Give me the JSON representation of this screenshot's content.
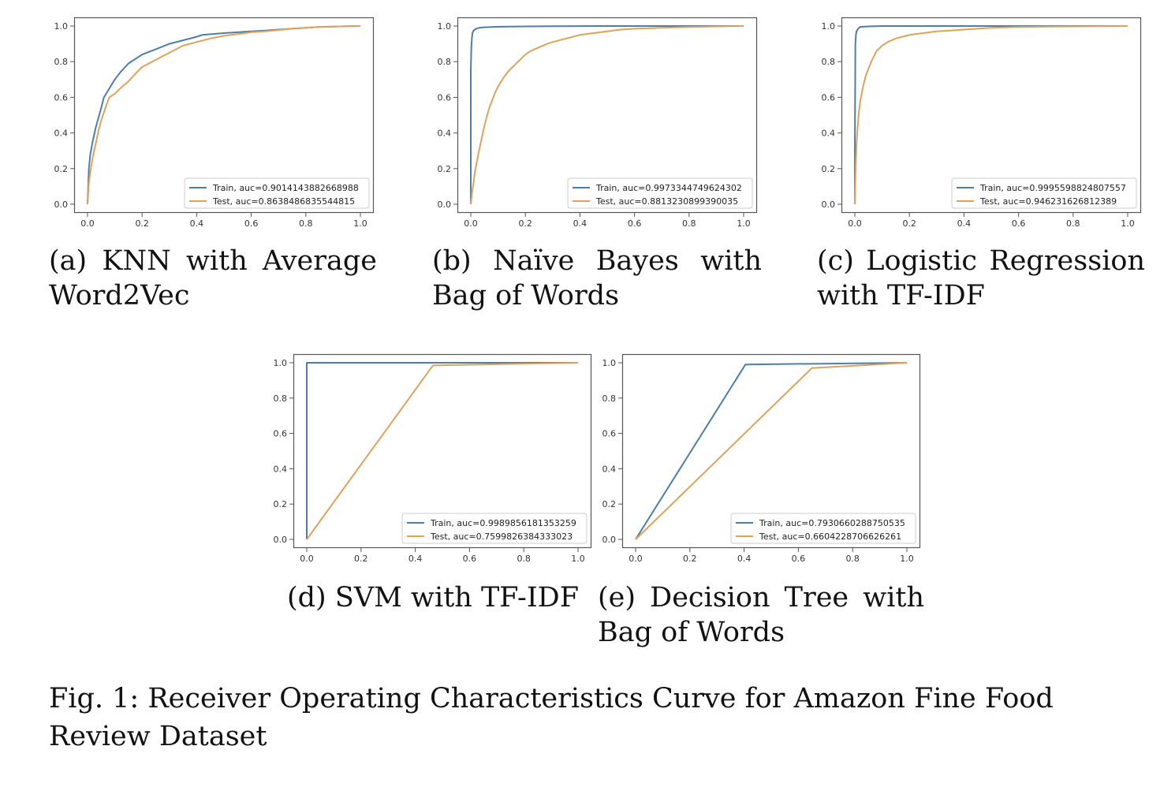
{
  "figure_caption": "Fig. 1: Receiver Operating Characteristics Curve for Amazon Fine Food Review Dataset",
  "chart_data": [
    {
      "type": "line",
      "caption": "(a) KNN with Average Word2Vec",
      "xlim": [
        0,
        1
      ],
      "ylim": [
        0,
        1
      ],
      "xticks": [
        "0.0",
        "0.2",
        "0.4",
        "0.6",
        "0.8",
        "1.0"
      ],
      "yticks": [
        "0.0",
        "0.2",
        "0.4",
        "0.6",
        "0.8",
        "1.0"
      ],
      "grid": false,
      "legend_position": "lower-right",
      "series": [
        {
          "name": "Train, auc=0.9014143882668988",
          "color": "#4c7ea8",
          "x": [
            0,
            0.005,
            0.01,
            0.02,
            0.03,
            0.05,
            0.06,
            0.08,
            0.1,
            0.12,
            0.15,
            0.2,
            0.25,
            0.3,
            0.35,
            0.4,
            0.42,
            0.5,
            0.55,
            0.6,
            0.65,
            0.7,
            0.75,
            0.8,
            0.85,
            0.9,
            0.95,
            1.0
          ],
          "y": [
            0,
            0.2,
            0.28,
            0.36,
            0.43,
            0.54,
            0.6,
            0.65,
            0.7,
            0.74,
            0.79,
            0.84,
            0.87,
            0.9,
            0.92,
            0.94,
            0.95,
            0.96,
            0.965,
            0.97,
            0.975,
            0.98,
            0.985,
            0.99,
            0.995,
            0.997,
            0.999,
            1.0
          ]
        },
        {
          "name": "Test, auc=0.8638486835544815",
          "color": "#e0a15a",
          "x": [
            0,
            0.005,
            0.01,
            0.02,
            0.03,
            0.04,
            0.05,
            0.07,
            0.08,
            0.1,
            0.12,
            0.15,
            0.18,
            0.2,
            0.25,
            0.3,
            0.35,
            0.4,
            0.45,
            0.5,
            0.55,
            0.6,
            0.65,
            0.7,
            0.75,
            0.8,
            0.85,
            0.9,
            0.95,
            1.0
          ],
          "y": [
            0,
            0.12,
            0.18,
            0.27,
            0.34,
            0.41,
            0.47,
            0.56,
            0.6,
            0.62,
            0.65,
            0.69,
            0.74,
            0.77,
            0.81,
            0.85,
            0.89,
            0.91,
            0.93,
            0.945,
            0.955,
            0.965,
            0.97,
            0.978,
            0.985,
            0.99,
            0.995,
            0.997,
            0.999,
            1.0
          ]
        }
      ]
    },
    {
      "type": "line",
      "caption": "(b) Naïve Bayes with Bag of Words",
      "xlim": [
        0,
        1
      ],
      "ylim": [
        0,
        1
      ],
      "xticks": [
        "0.0",
        "0.2",
        "0.4",
        "0.6",
        "0.8",
        "1.0"
      ],
      "yticks": [
        "0.0",
        "0.2",
        "0.4",
        "0.6",
        "0.8",
        "1.0"
      ],
      "grid": false,
      "legend_position": "lower-right",
      "series": [
        {
          "name": "Train, auc=0.9973344749624302",
          "color": "#4c7ea8",
          "x": [
            0,
            0.0,
            0.002,
            0.004,
            0.006,
            0.01,
            0.015,
            0.02,
            0.03,
            0.05,
            0.1,
            0.2,
            0.3,
            0.5,
            0.7,
            1.0
          ],
          "y": [
            0,
            0.75,
            0.88,
            0.93,
            0.96,
            0.975,
            0.98,
            0.985,
            0.99,
            0.993,
            0.996,
            0.998,
            0.999,
            1.0,
            1.0,
            1.0
          ]
        },
        {
          "name": "Test, auc=0.8813230899390035",
          "color": "#e0a15a",
          "x": [
            0,
            0.005,
            0.01,
            0.015,
            0.02,
            0.03,
            0.04,
            0.05,
            0.06,
            0.07,
            0.08,
            0.09,
            0.1,
            0.12,
            0.14,
            0.16,
            0.18,
            0.2,
            0.22,
            0.25,
            0.28,
            0.3,
            0.35,
            0.4,
            0.45,
            0.5,
            0.55,
            0.6,
            0.7,
            0.8,
            0.9,
            1.0
          ],
          "y": [
            0,
            0.07,
            0.12,
            0.18,
            0.22,
            0.3,
            0.37,
            0.44,
            0.5,
            0.55,
            0.59,
            0.63,
            0.66,
            0.71,
            0.75,
            0.78,
            0.81,
            0.84,
            0.86,
            0.88,
            0.9,
            0.91,
            0.93,
            0.95,
            0.96,
            0.97,
            0.98,
            0.985,
            0.99,
            0.995,
            0.998,
            1.0
          ]
        }
      ]
    },
    {
      "type": "line",
      "caption": "(c) Logistic Regression with TF-IDF",
      "xlim": [
        0,
        1
      ],
      "ylim": [
        0,
        1
      ],
      "xticks": [
        "0.0",
        "0.2",
        "0.4",
        "0.6",
        "0.8",
        "1.0"
      ],
      "yticks": [
        "0.0",
        "0.2",
        "0.4",
        "0.6",
        "0.8",
        "1.0"
      ],
      "grid": false,
      "legend_position": "lower-right",
      "series": [
        {
          "name": "Train, auc=0.9995598824807557",
          "color": "#4c7ea8",
          "x": [
            0,
            0.0,
            0.002,
            0.004,
            0.006,
            0.01,
            0.015,
            0.02,
            0.05,
            0.1,
            0.3,
            0.5,
            1.0
          ],
          "y": [
            0,
            0.3,
            0.9,
            0.95,
            0.97,
            0.98,
            0.99,
            0.995,
            0.998,
            1.0,
            1.0,
            1.0,
            1.0
          ]
        },
        {
          "name": "Test, auc=0.946231626812389",
          "color": "#e0a15a",
          "x": [
            0,
            0.003,
            0.006,
            0.01,
            0.015,
            0.02,
            0.03,
            0.04,
            0.05,
            0.06,
            0.07,
            0.08,
            0.1,
            0.12,
            0.15,
            0.2,
            0.25,
            0.3,
            0.35,
            0.4,
            0.5,
            0.6,
            0.7,
            0.8,
            0.9,
            1.0
          ],
          "y": [
            0,
            0.2,
            0.34,
            0.43,
            0.52,
            0.58,
            0.66,
            0.72,
            0.76,
            0.8,
            0.83,
            0.86,
            0.89,
            0.91,
            0.93,
            0.95,
            0.96,
            0.97,
            0.975,
            0.98,
            0.99,
            0.995,
            0.997,
            0.998,
            0.999,
            1.0
          ]
        }
      ]
    },
    {
      "type": "line",
      "caption": "(d) SVM with TF-IDF",
      "xlim": [
        0,
        1
      ],
      "ylim": [
        0,
        1
      ],
      "xticks": [
        "0.0",
        "0.2",
        "0.4",
        "0.6",
        "0.8",
        "1.0"
      ],
      "yticks": [
        "0.0",
        "0.2",
        "0.4",
        "0.6",
        "0.8",
        "1.0"
      ],
      "grid": false,
      "legend_position": "lower-right",
      "series": [
        {
          "name": "Train, auc=0.9989856181353259",
          "color": "#4c7ea8",
          "x": [
            0,
            0.0,
            0.002,
            1.0
          ],
          "y": [
            0,
            0.998,
            1.0,
            1.0
          ]
        },
        {
          "name": "Test, auc=0.7599826384333023",
          "color": "#e0a15a",
          "x": [
            0,
            0.465,
            1.0
          ],
          "y": [
            0,
            0.985,
            1.0
          ]
        }
      ]
    },
    {
      "type": "line",
      "caption": "(e) Decision Tree with Bag of Words",
      "xlim": [
        0,
        1
      ],
      "ylim": [
        0,
        1
      ],
      "xticks": [
        "0.0",
        "0.2",
        "0.4",
        "0.6",
        "0.8",
        "1.0"
      ],
      "yticks": [
        "0.0",
        "0.2",
        "0.4",
        "0.6",
        "0.8",
        "1.0"
      ],
      "grid": false,
      "legend_position": "lower-right",
      "series": [
        {
          "name": "Train, auc=0.7930660288750535",
          "color": "#4c7ea8",
          "x": [
            0,
            0.405,
            1.0
          ],
          "y": [
            0,
            0.99,
            1.0
          ]
        },
        {
          "name": "Test, auc=0.6604228706626261",
          "color": "#e0a15a",
          "x": [
            0,
            0.65,
            1.0
          ],
          "y": [
            0,
            0.97,
            1.0
          ]
        }
      ]
    }
  ]
}
